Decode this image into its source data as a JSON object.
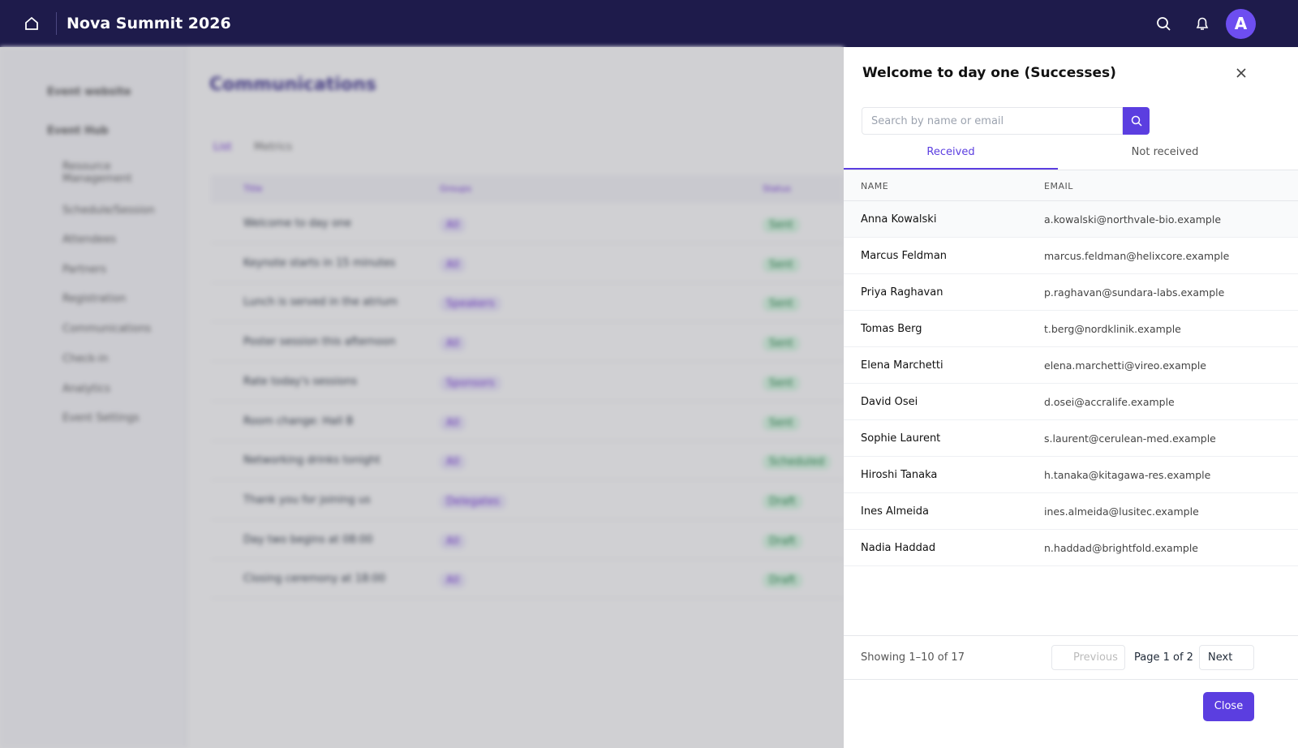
{
  "header": {
    "title": "Nova Summit 2026",
    "avatar": "A"
  },
  "sidebar": {
    "items": [
      "Event website",
      "Event Hub",
      "Resource Management",
      "Schedule/Session",
      "Attendees",
      "Partners",
      "Registration",
      "Communications",
      "Check-in",
      "Analytics",
      "Event Settings"
    ]
  },
  "main": {
    "title": "Communications",
    "tabs": [
      "List",
      "Metrics"
    ],
    "columns": [
      "Title",
      "Groups",
      "Status"
    ],
    "rows": [
      [
        "Welcome to day one",
        "All",
        "Sent"
      ],
      [
        "Keynote starts in 15 minutes",
        "All",
        "Sent"
      ],
      [
        "Lunch is served in the atrium",
        "Speakers",
        "Sent"
      ],
      [
        "Poster session this afternoon",
        "All",
        "Sent"
      ],
      [
        "Rate today's sessions",
        "Sponsors",
        "Sent"
      ],
      [
        "Room change: Hall B",
        "All",
        "Sent"
      ],
      [
        "Networking drinks tonight",
        "All",
        "Scheduled"
      ],
      [
        "Thank you for joining us",
        "Delegates",
        "Draft"
      ],
      [
        "Day two begins at 08:00",
        "All",
        "Draft"
      ],
      [
        "Closing ceremony at 18:00",
        "All",
        "Draft"
      ]
    ]
  },
  "panel": {
    "title": "Welcome to day one (Successes)",
    "search_placeholder": "Search by name or email",
    "tabs": [
      "Received",
      "Not received"
    ],
    "columns": [
      "NAME",
      "EMAIL"
    ],
    "rows": [
      {
        "name": "Anna Kowalski",
        "email": "a.kowalski@northvale-bio.example"
      },
      {
        "name": "Marcus Feldman",
        "email": "marcus.feldman@helixcore.example"
      },
      {
        "name": "Priya Raghavan",
        "email": "p.raghavan@sundara-labs.example"
      },
      {
        "name": "Tomas Berg",
        "email": "t.berg@nordklinik.example"
      },
      {
        "name": "Elena Marchetti",
        "email": "elena.marchetti@vireo.example"
      },
      {
        "name": "David Osei",
        "email": "d.osei@accralife.example"
      },
      {
        "name": "Sophie Laurent",
        "email": "s.laurent@cerulean-med.example"
      },
      {
        "name": "Hiroshi Tanaka",
        "email": "h.tanaka@kitagawa-res.example"
      },
      {
        "name": "Ines Almeida",
        "email": "ines.almeida@lusitec.example"
      },
      {
        "name": "Nadia Haddad",
        "email": "n.haddad@brightfold.example"
      }
    ],
    "footer": {
      "showing": "Showing 1–10 of 17",
      "previous": "Previous",
      "page": "Page 1 of 2",
      "next": "Next"
    },
    "close": "Close"
  }
}
